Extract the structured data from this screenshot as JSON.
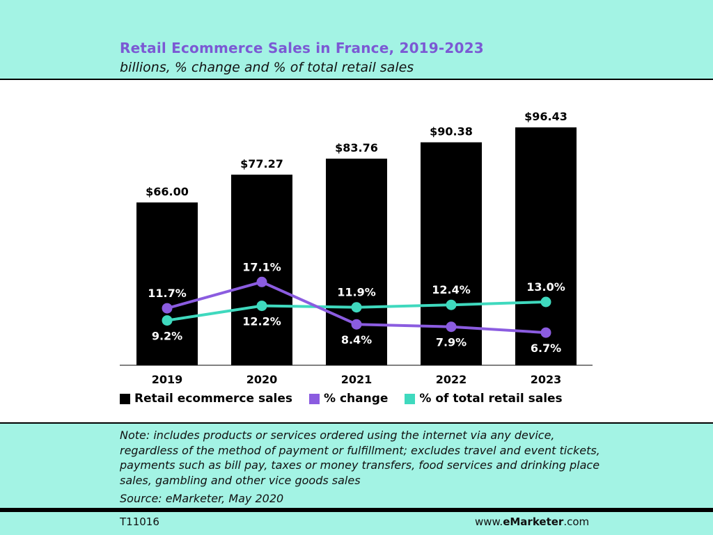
{
  "header": {
    "title": "Retail Ecommerce Sales in France, 2019-2023",
    "subtitle": "billions, % change and % of total retail sales"
  },
  "colors": {
    "bars": "#000000",
    "pct_change": "#8b5ce0",
    "pct_total": "#3fd9be",
    "title": "#7b59d4",
    "band": "#a3f3e4"
  },
  "chart_data": {
    "type": "bar",
    "categories": [
      "2019",
      "2020",
      "2021",
      "2022",
      "2023"
    ],
    "series": [
      {
        "name": "Retail ecommerce sales",
        "type": "bar",
        "values": [
          66.0,
          77.27,
          83.76,
          90.38,
          96.43
        ],
        "labels": [
          "$66.00",
          "$77.27",
          "$83.76",
          "$90.38",
          "$96.43"
        ]
      },
      {
        "name": "% change",
        "type": "line",
        "values": [
          11.7,
          17.1,
          8.4,
          7.9,
          6.7
        ],
        "labels": [
          "11.7%",
          "17.1%",
          "8.4%",
          "7.9%",
          "6.7%"
        ]
      },
      {
        "name": "% of total retail sales",
        "type": "line",
        "values": [
          9.2,
          12.2,
          11.9,
          12.4,
          13.0
        ],
        "labels": [
          "9.2%",
          "12.2%",
          "11.9%",
          "12.4%",
          "13.0%"
        ]
      }
    ],
    "bar_ylim": [
      0,
      110
    ],
    "line_ylim": [
      0,
      40
    ],
    "title": "Retail Ecommerce Sales in France, 2019-2023",
    "subtitle": "billions, % change and % of total retail sales",
    "legend_position": "bottom"
  },
  "legend": {
    "bars": "Retail ecommerce sales",
    "pct_change": "% change",
    "pct_total": "% of total retail sales"
  },
  "footer": {
    "note": "Note: includes products or services ordered using the internet via any device, regardless of the method of payment or fulfillment; excludes travel and event tickets, payments such as bill pay, taxes or money transfers, food services and drinking place sales, gambling and other vice goods sales",
    "source": "Source: eMarketer, May 2020",
    "chart_id": "T11016",
    "brand_prefix": "www.",
    "brand_name": "eMarketer",
    "brand_suffix": ".com"
  }
}
